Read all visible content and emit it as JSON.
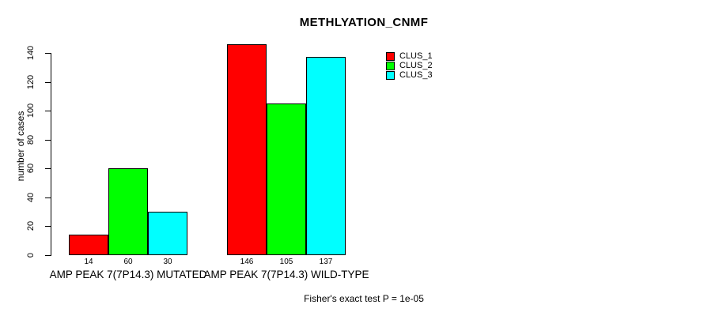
{
  "chart_data": {
    "type": "bar",
    "title": "METHLYATION_CNMF",
    "xlabel": "",
    "ylabel": "number of cases",
    "ylim": [
      0,
      140
    ],
    "yticks": [
      0,
      20,
      40,
      60,
      80,
      100,
      120,
      140
    ],
    "grid": false,
    "legend_position": "top-right",
    "categories": [
      "AMP PEAK 7(7P14.3) MUTATED",
      "AMP PEAK 7(7P14.3) WILD-TYPE"
    ],
    "series": [
      {
        "name": "CLUS_1",
        "color": "#FF0000",
        "values": [
          14,
          146
        ]
      },
      {
        "name": "CLUS_2",
        "color": "#00FF00",
        "values": [
          60,
          105
        ]
      },
      {
        "name": "CLUS_3",
        "color": "#00FFFF",
        "values": [
          30,
          137
        ]
      }
    ],
    "bar_value_labels": [
      [
        14,
        60,
        30
      ],
      [
        146,
        105,
        137
      ]
    ],
    "annotation": "Fisher's exact test P = 1e-05",
    "axis_color": "#000000",
    "bar_border_color": "#000000",
    "background_color": "#FFFFFF"
  }
}
